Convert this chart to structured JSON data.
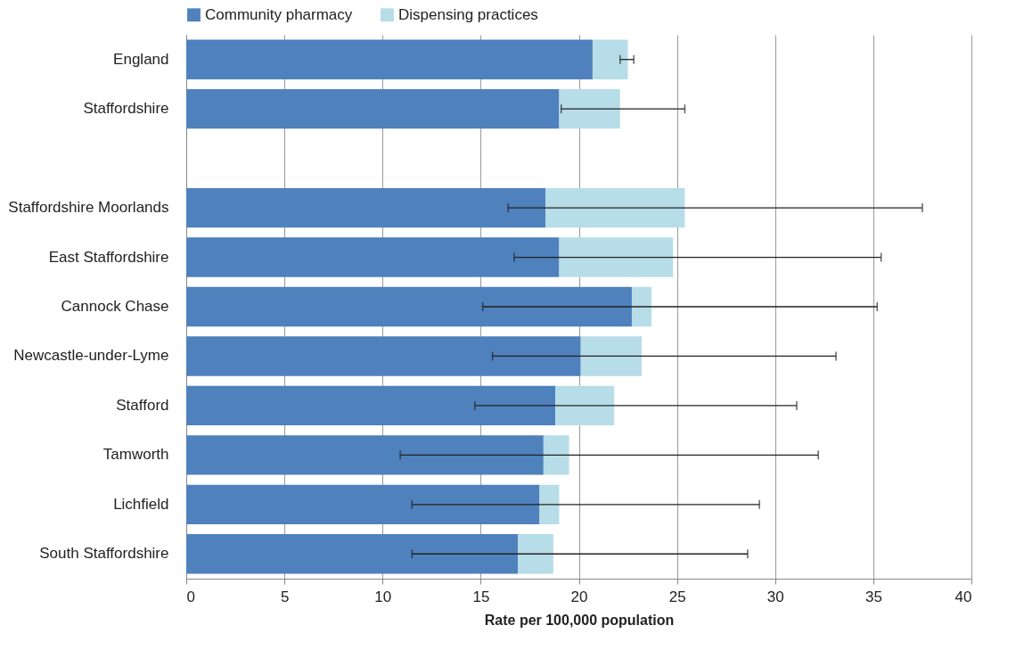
{
  "chart_data": {
    "type": "bar",
    "orientation": "horizontal",
    "stacked": true,
    "categories": [
      "England",
      "Staffordshire",
      null,
      "Staffordshire Moorlands",
      "East Staffordshire",
      "Cannock Chase",
      "Newcastle-under-Lyme",
      "Stafford",
      "Tamworth",
      "Lichfield",
      "South Staffordshire"
    ],
    "series": [
      {
        "name": "Community pharmacy",
        "color": "#4f81bd",
        "values": [
          20.7,
          19.0,
          null,
          18.3,
          19.0,
          22.7,
          20.1,
          18.8,
          18.2,
          18.0,
          16.9
        ]
      },
      {
        "name": "Dispensing practices",
        "color": "#b7dde8",
        "values": [
          1.8,
          3.1,
          null,
          7.1,
          5.8,
          1.0,
          3.1,
          3.0,
          1.3,
          1.0,
          1.8
        ],
        "errors": [
          [
            22.1,
            22.8
          ],
          [
            19.1,
            25.4
          ],
          null,
          [
            16.4,
            37.5
          ],
          [
            16.7,
            35.4
          ],
          [
            15.1,
            35.2
          ],
          [
            15.6,
            33.1
          ],
          [
            14.7,
            31.1
          ],
          [
            10.9,
            32.2
          ],
          [
            11.5,
            29.2
          ],
          [
            11.5,
            28.6
          ]
        ]
      }
    ],
    "xlabel": "Rate per 100,000 population",
    "xlim": [
      0,
      40
    ],
    "xticks": [
      0,
      5,
      10,
      15,
      20,
      25,
      30,
      35,
      40
    ],
    "grid": "x",
    "legend": "top"
  }
}
